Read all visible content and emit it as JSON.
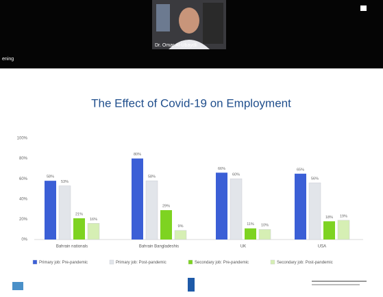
{
  "screen": {
    "status_text": "ening",
    "participant_name": "Dr. Omar Al-Ubaydli"
  },
  "chart_data": {
    "type": "bar",
    "title": "The Effect of Covid-19 on Employment",
    "categories": [
      "Bahrain nationals",
      "Bahrain Bangladeshis",
      "UK",
      "USA"
    ],
    "series": [
      {
        "name": "Primary job: Pre-pandemic",
        "color": "#3b5fd6",
        "values": [
          58,
          80,
          66,
          65
        ],
        "value_labels": [
          "58%",
          "80%",
          "66%",
          "65%"
        ]
      },
      {
        "name": "Primary job: Post-pandemic",
        "color": "#e2e5ea",
        "values": [
          53,
          58,
          60,
          56
        ],
        "value_labels": [
          "53%",
          "58%",
          "60%",
          "56%"
        ]
      },
      {
        "name": "Secondary job: Pre-pandemic",
        "color": "#7ed321",
        "values": [
          21,
          29,
          11,
          18
        ],
        "value_labels": [
          "21%",
          "29%",
          "11%",
          "18%"
        ]
      },
      {
        "name": "Secondary job: Post-pandemic",
        "color": "#d6efb4",
        "values": [
          16,
          9,
          10,
          19
        ],
        "value_labels": [
          "16%",
          "9%",
          "10%",
          "19%"
        ]
      }
    ],
    "ylim": [
      0,
      100
    ],
    "yticks": [
      {
        "value": 0,
        "label": "0%"
      },
      {
        "value": 20,
        "label": "20%"
      },
      {
        "value": 40,
        "label": "40%"
      },
      {
        "value": 60,
        "label": "60%"
      },
      {
        "value": 80,
        "label": "80%"
      },
      {
        "value": 100,
        "label": "100%"
      }
    ],
    "grid": false
  }
}
